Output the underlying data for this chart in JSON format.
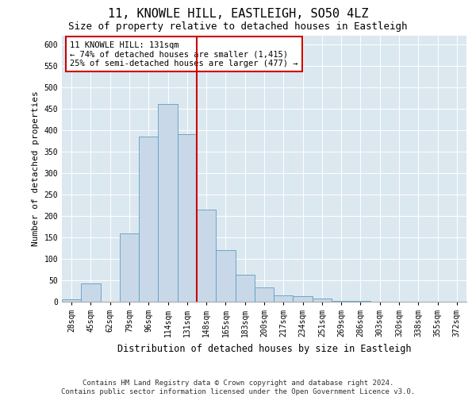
{
  "title": "11, KNOWLE HILL, EASTLEIGH, SO50 4LZ",
  "subtitle": "Size of property relative to detached houses in Eastleigh",
  "xlabel": "Distribution of detached houses by size in Eastleigh",
  "ylabel": "Number of detached properties",
  "categories": [
    "28sqm",
    "45sqm",
    "62sqm",
    "79sqm",
    "96sqm",
    "114sqm",
    "131sqm",
    "148sqm",
    "165sqm",
    "183sqm",
    "200sqm",
    "217sqm",
    "234sqm",
    "251sqm",
    "269sqm",
    "286sqm",
    "303sqm",
    "320sqm",
    "338sqm",
    "355sqm",
    "372sqm"
  ],
  "values": [
    5,
    42,
    0,
    160,
    385,
    460,
    390,
    215,
    120,
    63,
    33,
    14,
    13,
    8,
    2,
    1,
    0,
    0,
    0,
    0,
    0
  ],
  "bar_color": "#c8d8e8",
  "bar_edge_color": "#5a9fc0",
  "vline_color": "#cc0000",
  "vline_x_index": 6.5,
  "annotation_text": "11 KNOWLE HILL: 131sqm\n← 74% of detached houses are smaller (1,415)\n25% of semi-detached houses are larger (477) →",
  "annotation_box_facecolor": "#ffffff",
  "annotation_box_edgecolor": "#cc0000",
  "ylim": [
    0,
    620
  ],
  "yticks": [
    0,
    50,
    100,
    150,
    200,
    250,
    300,
    350,
    400,
    450,
    500,
    550,
    600
  ],
  "plot_bg_color": "#dce8f0",
  "footer": "Contains HM Land Registry data © Crown copyright and database right 2024.\nContains public sector information licensed under the Open Government Licence v3.0.",
  "title_fontsize": 11,
  "subtitle_fontsize": 9,
  "xlabel_fontsize": 8.5,
  "ylabel_fontsize": 8,
  "tick_fontsize": 7,
  "footer_fontsize": 6.5,
  "annot_fontsize": 7.5
}
